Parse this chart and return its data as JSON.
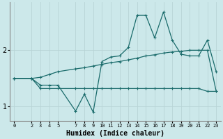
{
  "xlabel": "Humidex (Indice chaleur)",
  "bg_color": "#cce8ea",
  "line_color": "#1a6b6b",
  "grid_color": "#b8d4d6",
  "xlim": [
    -0.5,
    23.5
  ],
  "ylim": [
    0.75,
    2.85
  ],
  "yticks": [
    1,
    2
  ],
  "xticks": [
    0,
    2,
    3,
    4,
    5,
    7,
    8,
    9,
    10,
    11,
    12,
    13,
    14,
    15,
    16,
    17,
    18,
    19,
    20,
    21,
    22,
    23
  ],
  "line_bottom_x": [
    0,
    2,
    3,
    4,
    5,
    7,
    8,
    9,
    10,
    11,
    12,
    13,
    14,
    15,
    16,
    17,
    18,
    19,
    20,
    21,
    22,
    23
  ],
  "line_bottom_y": [
    1.5,
    1.5,
    1.32,
    1.32,
    1.32,
    1.32,
    1.32,
    1.32,
    1.32,
    1.32,
    1.32,
    1.32,
    1.32,
    1.32,
    1.32,
    1.32,
    1.32,
    1.32,
    1.32,
    1.32,
    1.27,
    1.27
  ],
  "line_jagged_x": [
    0,
    2,
    3,
    4,
    5,
    7,
    8,
    9,
    10,
    11,
    12,
    13,
    14,
    15,
    16,
    17,
    18,
    19,
    20,
    21,
    22,
    23
  ],
  "line_jagged_y": [
    1.5,
    1.5,
    1.38,
    1.38,
    1.38,
    0.92,
    1.22,
    0.9,
    1.8,
    1.88,
    1.9,
    2.05,
    2.62,
    2.62,
    2.22,
    2.68,
    2.18,
    1.93,
    1.9,
    1.9,
    2.18,
    1.62
  ],
  "line_slope_x": [
    0,
    2,
    3,
    4,
    5,
    7,
    8,
    9,
    10,
    11,
    12,
    13,
    14,
    15,
    16,
    17,
    18,
    19,
    20,
    21,
    22,
    23
  ],
  "line_slope_y": [
    1.5,
    1.5,
    1.52,
    1.57,
    1.62,
    1.67,
    1.69,
    1.72,
    1.75,
    1.78,
    1.8,
    1.83,
    1.86,
    1.9,
    1.92,
    1.95,
    1.97,
    1.98,
    2.0,
    2.0,
    2.0,
    1.27
  ]
}
